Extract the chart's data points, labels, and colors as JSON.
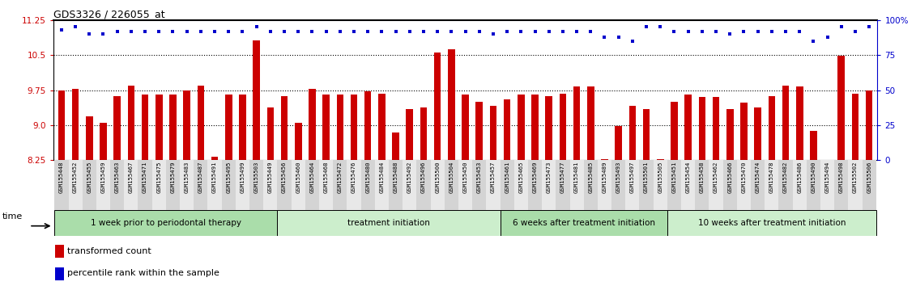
{
  "title": "GDS3326 / 226055_at",
  "ylim_left": [
    8.25,
    11.25
  ],
  "ylim_right": [
    0,
    100
  ],
  "yticks_left": [
    8.25,
    9.0,
    9.75,
    10.5,
    11.25
  ],
  "yticks_right": [
    0,
    25,
    50,
    75,
    100
  ],
  "ytick_labels_right": [
    "0",
    "25",
    "50",
    "75",
    "100%"
  ],
  "bar_color": "#cc0000",
  "dot_color": "#0000cc",
  "background_color": "#ffffff",
  "groups": [
    {
      "label": "1 week prior to periodontal therapy",
      "color": "#aaddaa",
      "start": 0,
      "end": 16
    },
    {
      "label": "treatment initiation",
      "color": "#cceecc",
      "start": 16,
      "end": 32
    },
    {
      "label": "6 weeks after treatment initiation",
      "color": "#aaddaa",
      "start": 32,
      "end": 44
    },
    {
      "label": "10 weeks after treatment initiation",
      "color": "#cceecc",
      "start": 44,
      "end": 59
    }
  ],
  "samples": [
    "GSM155448",
    "GSM155452",
    "GSM155455",
    "GSM155459",
    "GSM155463",
    "GSM155467",
    "GSM155471",
    "GSM155475",
    "GSM155479",
    "GSM155483",
    "GSM155487",
    "GSM155491",
    "GSM155495",
    "GSM155499",
    "GSM155503",
    "GSM155449",
    "GSM155456",
    "GSM155460",
    "GSM155464",
    "GSM155468",
    "GSM155472",
    "GSM155476",
    "GSM155480",
    "GSM155484",
    "GSM155488",
    "GSM155492",
    "GSM155496",
    "GSM155500",
    "GSM155504",
    "GSM155450",
    "GSM155453",
    "GSM155457",
    "GSM155461",
    "GSM155465",
    "GSM155469",
    "GSM155473",
    "GSM155477",
    "GSM155481",
    "GSM155485",
    "GSM155489",
    "GSM155493",
    "GSM155497",
    "GSM155501",
    "GSM155505",
    "GSM155451",
    "GSM155454",
    "GSM155458",
    "GSM155462",
    "GSM155466",
    "GSM155470",
    "GSM155474",
    "GSM155478",
    "GSM155482",
    "GSM155486",
    "GSM155490",
    "GSM155494",
    "GSM155498",
    "GSM155502",
    "GSM155506"
  ],
  "bar_values": [
    9.75,
    9.78,
    9.18,
    9.05,
    9.62,
    9.85,
    9.65,
    9.65,
    9.65,
    9.74,
    9.85,
    8.32,
    9.65,
    9.65,
    10.82,
    9.38,
    9.62,
    9.05,
    9.78,
    9.65,
    9.65,
    9.65,
    9.72,
    9.68,
    8.85,
    9.35,
    9.38,
    10.55,
    10.62,
    9.65,
    9.5,
    9.42,
    9.55,
    9.65,
    9.65,
    9.62,
    9.68,
    9.82,
    9.82,
    8.28,
    8.98,
    9.42,
    9.35,
    8.28,
    9.5,
    9.65,
    9.6,
    9.6,
    9.35,
    9.48,
    9.38,
    9.62,
    9.85,
    9.82,
    8.88,
    8.25,
    10.48,
    9.68,
    9.75
  ],
  "percentile_values": [
    93,
    95,
    90,
    90,
    92,
    92,
    92,
    92,
    92,
    92,
    92,
    92,
    92,
    92,
    95,
    92,
    92,
    92,
    92,
    92,
    92,
    92,
    92,
    92,
    92,
    92,
    92,
    92,
    92,
    92,
    92,
    90,
    92,
    92,
    92,
    92,
    92,
    92,
    92,
    88,
    88,
    85,
    95,
    95,
    92,
    92,
    92,
    92,
    90,
    92,
    92,
    92,
    92,
    92,
    85,
    88,
    95,
    92,
    95
  ]
}
